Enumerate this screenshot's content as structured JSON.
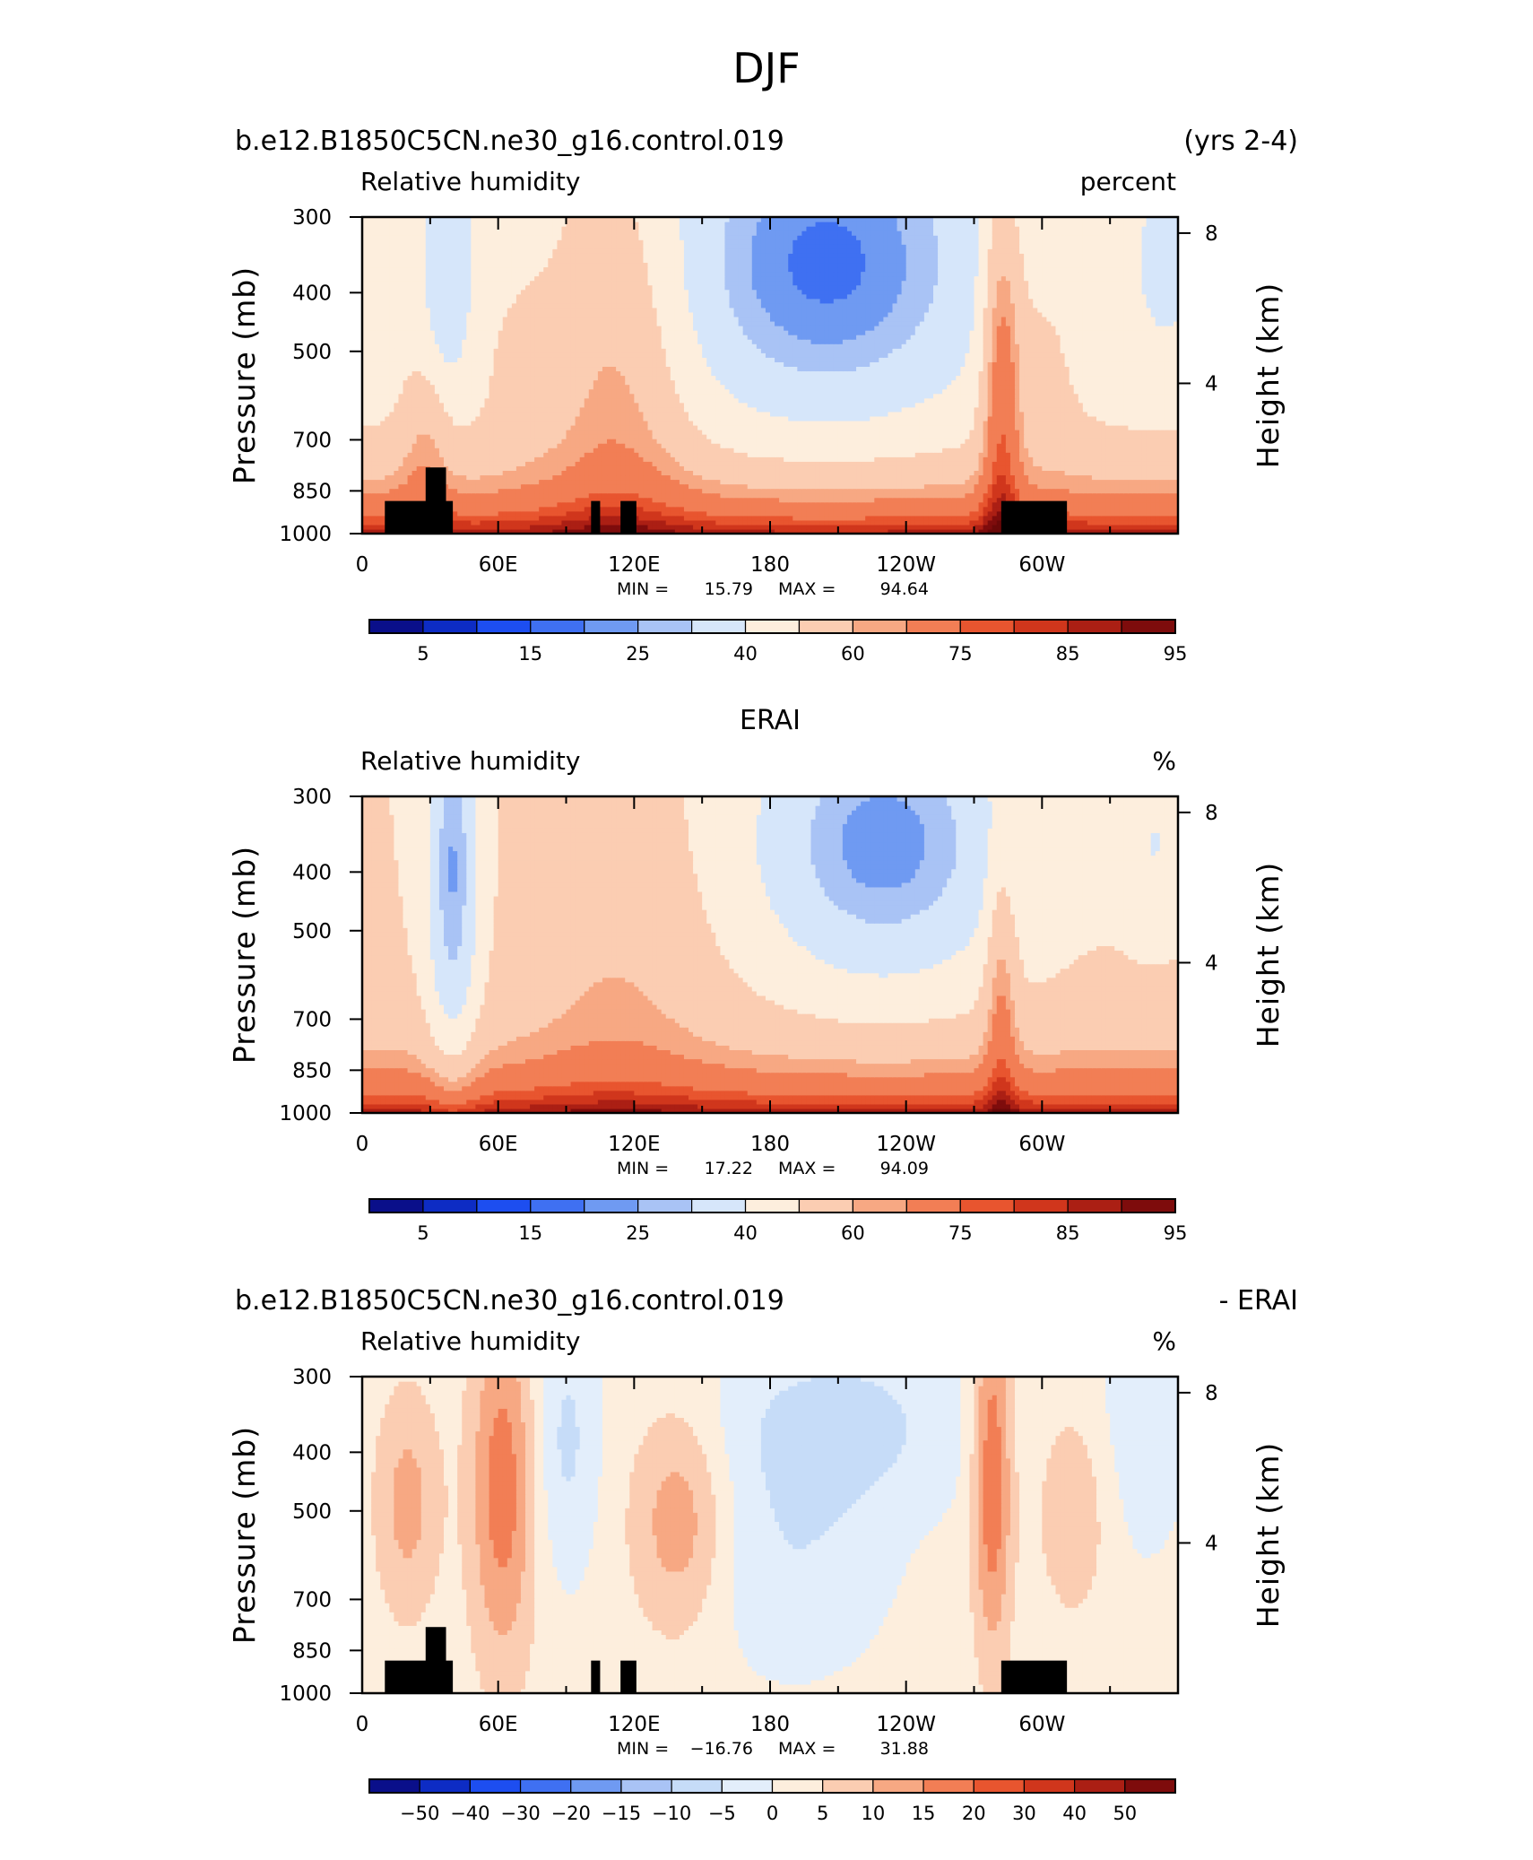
{
  "figure_title": "DJF",
  "chart_data": [
    {
      "type": "heatmap",
      "title_left": "b.e12.B1850C5CN.ne30_g16.control.019",
      "title_right": "(yrs 2-4)",
      "subtitle_left": "Relative humidity",
      "subtitle_right": "percent",
      "ylabel": "Pressure (mb)",
      "ylabel_right": "Height (km)",
      "x_ticks": [
        "0",
        "60E",
        "120E",
        "180",
        "120W",
        "60W"
      ],
      "y_ticks": [
        "300",
        "400",
        "500",
        "700",
        "850",
        "1000"
      ],
      "y_ticks_right": [
        "8",
        "4"
      ],
      "stats": {
        "min_label": "MIN =",
        "min": "15.79",
        "max_label": "MAX =",
        "max": "94.64"
      },
      "colorbar_labels": [
        "5",
        "15",
        "25",
        "40",
        "60",
        "75",
        "85",
        "95"
      ],
      "colorbar_colors": [
        "#0a0f8a",
        "#0d2cc4",
        "#1d4ef0",
        "#3f70f2",
        "#6f9af2",
        "#a9c3f5",
        "#d6e6fa",
        "#fdeedd",
        "#fbcdb2",
        "#f7a883",
        "#f27e55",
        "#e8552f",
        "#d0361c",
        "#ab1f14",
        "#7e0c0c"
      ],
      "x_range": [
        0,
        360
      ],
      "y_range": [
        1000,
        300
      ],
      "terrain": true
    },
    {
      "type": "heatmap",
      "title_center": "ERAI",
      "subtitle_left": "Relative humidity",
      "subtitle_right": "%",
      "ylabel": "Pressure (mb)",
      "ylabel_right": "Height (km)",
      "x_ticks": [
        "0",
        "60E",
        "120E",
        "180",
        "120W",
        "60W"
      ],
      "y_ticks": [
        "300",
        "400",
        "500",
        "700",
        "850",
        "1000"
      ],
      "y_ticks_right": [
        "8",
        "4"
      ],
      "stats": {
        "min_label": "MIN =",
        "min": "17.22",
        "max_label": "MAX =",
        "max": "94.09"
      },
      "colorbar_labels": [
        "5",
        "15",
        "25",
        "40",
        "60",
        "75",
        "85",
        "95"
      ],
      "colorbar_colors": [
        "#0a0f8a",
        "#0d2cc4",
        "#1d4ef0",
        "#3f70f2",
        "#6f9af2",
        "#a9c3f5",
        "#d6e6fa",
        "#fdeedd",
        "#fbcdb2",
        "#f7a883",
        "#f27e55",
        "#e8552f",
        "#d0361c",
        "#ab1f14",
        "#7e0c0c"
      ],
      "x_range": [
        0,
        360
      ],
      "y_range": [
        1000,
        300
      ],
      "terrain": false
    },
    {
      "type": "heatmap",
      "title_left": "b.e12.B1850C5CN.ne30_g16.control.019",
      "title_right": "- ERAI",
      "subtitle_left": "Relative humidity",
      "subtitle_right": "%",
      "ylabel": "Pressure (mb)",
      "ylabel_right": "Height (km)",
      "x_ticks": [
        "0",
        "60E",
        "120E",
        "180",
        "120W",
        "60W"
      ],
      "y_ticks": [
        "300",
        "400",
        "500",
        "700",
        "850",
        "1000"
      ],
      "y_ticks_right": [
        "8",
        "4"
      ],
      "stats": {
        "min_label": "MIN =",
        "min": "−16.76",
        "max_label": "MAX =",
        "max": "31.88"
      },
      "colorbar_labels": [
        "−50",
        "−40",
        "−30",
        "−20",
        "−15",
        "−10",
        "−5",
        "0",
        "5",
        "10",
        "15",
        "20",
        "30",
        "40",
        "50"
      ],
      "colorbar_colors": [
        "#0a0f8a",
        "#0d2cc4",
        "#1d4ef0",
        "#3f70f2",
        "#6f9af2",
        "#a9c3f5",
        "#c6dcf8",
        "#e3eefb",
        "#fdeedd",
        "#fbcdb2",
        "#f7a883",
        "#f27e55",
        "#e8552f",
        "#d0361c",
        "#ab1f14",
        "#7e0c0c"
      ],
      "x_range": [
        0,
        360
      ],
      "y_range": [
        1000,
        300
      ],
      "terrain": true
    }
  ]
}
